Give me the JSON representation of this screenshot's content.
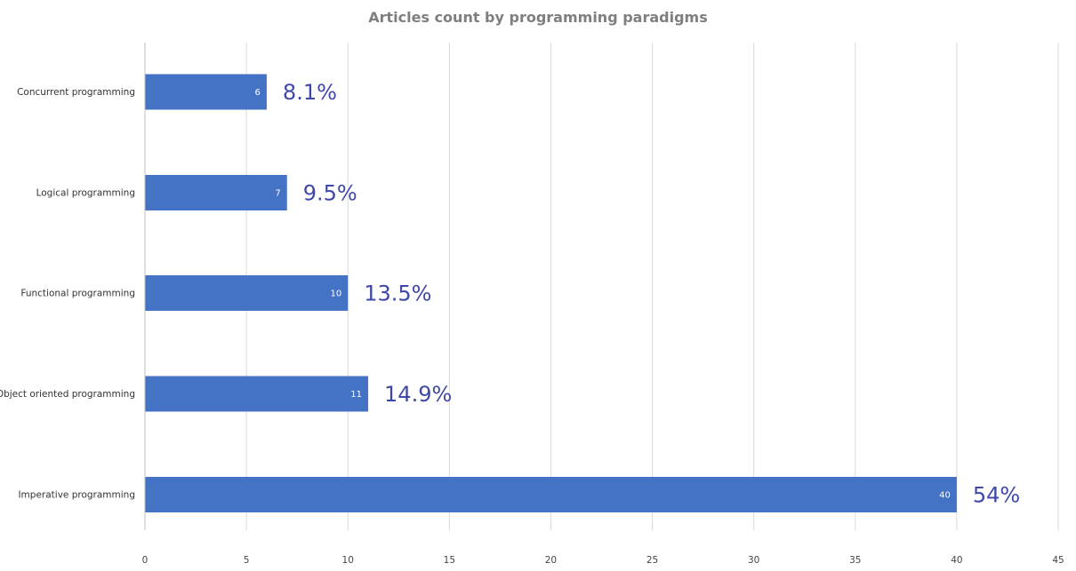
{
  "chart_data": {
    "type": "bar",
    "orientation": "horizontal",
    "title": "Articles count by programming paradigms",
    "categories": [
      "Concurrent programming",
      "Logical programming",
      "Functional programming",
      "Object oriented programming",
      "Imperative programming"
    ],
    "values": [
      6,
      7,
      10,
      11,
      40
    ],
    "value_labels": [
      "6",
      "7",
      "10",
      "11",
      "40"
    ],
    "percent_labels": [
      "8.1%",
      "9.5%",
      "13.5%",
      "14.9%",
      "54%"
    ],
    "xlim": [
      0,
      45
    ],
    "xticks": [
      "0",
      "5",
      "10",
      "15",
      "20",
      "25",
      "30",
      "35",
      "40",
      "45"
    ],
    "grid": "vertical",
    "legend": "none"
  },
  "colors": {
    "bar": "#4472c4",
    "percent_text": "#3f48a8",
    "gridline": "#d9d9d9",
    "axis": "#bfbfbf"
  }
}
